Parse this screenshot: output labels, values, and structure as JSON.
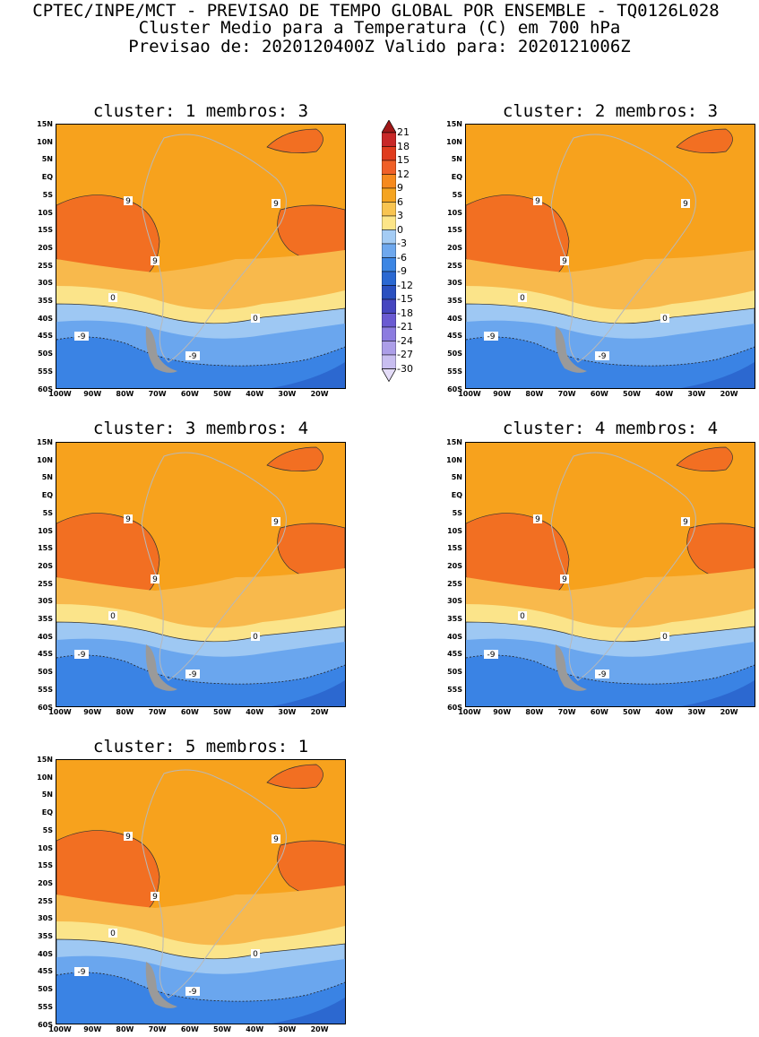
{
  "header": {
    "line1": "CPTEC/INPE/MCT - PREVISAO DE TEMPO GLOBAL POR ENSEMBLE - TQ0126L028",
    "line2": "Cluster Medio para a Temperatura (C) em 700 hPa",
    "line3": "Previsao de: 2020120400Z   Valido para: 2020121006Z"
  },
  "panels": [
    {
      "title": "cluster: 1  membros: 3"
    },
    {
      "title": "cluster: 2  membros: 3"
    },
    {
      "title": "cluster: 3  membros: 4"
    },
    {
      "title": "cluster: 4  membros: 4"
    },
    {
      "title": "cluster: 5  membros: 1"
    }
  ],
  "lat_labels": [
    "15N",
    "10N",
    "5N",
    "EQ",
    "5S",
    "10S",
    "15S",
    "20S",
    "25S",
    "30S",
    "35S",
    "40S",
    "45S",
    "50S",
    "55S",
    "60S"
  ],
  "lon_labels": [
    "100W",
    "90W",
    "80W",
    "70W",
    "60W",
    "50W",
    "40W",
    "30W",
    "20W"
  ],
  "contour_labels": {
    "warm": "9",
    "zero": "0",
    "cold": "-9"
  },
  "colorbar": {
    "labels": [
      "21",
      "18",
      "15",
      "12",
      "9",
      "6",
      "3",
      "0",
      "-3",
      "-6",
      "-9",
      "-12",
      "-15",
      "-18",
      "-21",
      "-24",
      "-27",
      "-30"
    ],
    "colors": [
      "#a01818",
      "#c82828",
      "#e03c1e",
      "#f06028",
      "#f68a1e",
      "#f5a420",
      "#f8c450",
      "#fce588",
      "#a4ccf4",
      "#6ea8ee",
      "#3c86e4",
      "#2a68d2",
      "#2a50c0",
      "#4646c0",
      "#6a5ad2",
      "#8c7ce0",
      "#ac9ee8",
      "#c8bef0",
      "#e4dcf8"
    ]
  },
  "colors": {
    "warm9": "#f26f22",
    "warm6": "#f7a21d",
    "warm3": "#f8b94c",
    "zero": "#fbe48a",
    "cold3": "#9ec8f3",
    "cold6": "#6aa6ee",
    "cold9": "#3a83e4",
    "cold12": "#2c68d0"
  }
}
